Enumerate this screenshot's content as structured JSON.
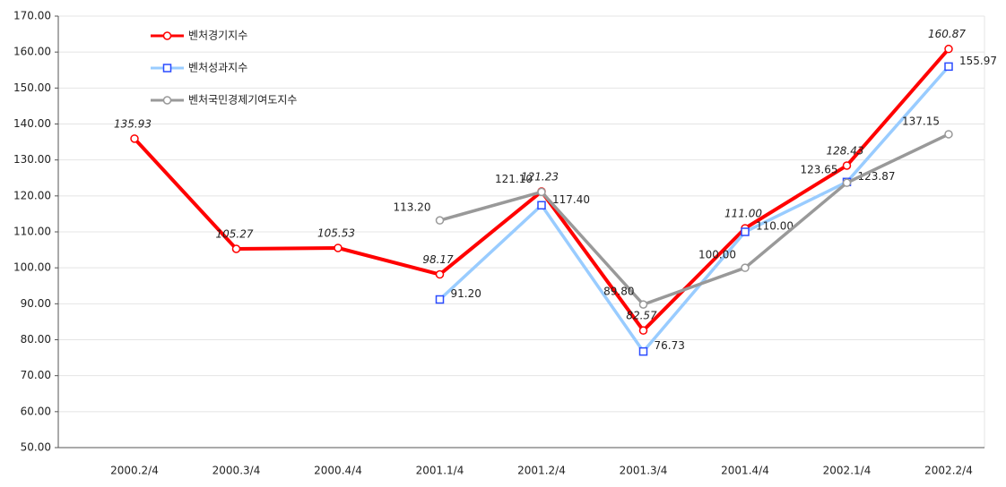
{
  "chart_data": {
    "type": "line",
    "categories": [
      "2000.2/4",
      "2000.3/4",
      "2000.4/4",
      "2001.1/4",
      "2001.2/4",
      "2001.3/4",
      "2001.4/4",
      "2002.1/4",
      "2002.2/4"
    ],
    "series": [
      {
        "name": "벤처경기지수",
        "color": "#ff0000",
        "marker": "circle",
        "values": [
          135.93,
          105.27,
          105.53,
          98.17,
          121.23,
          82.57,
          111.0,
          128.43,
          160.87
        ],
        "value_labels": [
          "135.93",
          "105.27",
          "105.53",
          "98.17",
          "121.23",
          "82.57",
          "111.00",
          "128.43",
          "160.87"
        ]
      },
      {
        "name": "벤처성과지수",
        "color": "#99ccff",
        "marker_color": "#2a4bff",
        "marker": "square",
        "values": [
          null,
          null,
          null,
          91.2,
          117.4,
          76.73,
          110.0,
          123.87,
          155.97
        ],
        "value_labels": [
          null,
          null,
          null,
          "91.20",
          "117.40",
          "76.73",
          "110.00",
          "123.87",
          "155.97"
        ]
      },
      {
        "name": "벤처국민경제기여도지수",
        "color": "#999999",
        "marker": "circle",
        "values": [
          null,
          null,
          null,
          113.2,
          121.1,
          89.8,
          100.0,
          123.65,
          137.15
        ],
        "value_labels": [
          null,
          null,
          null,
          "113.20",
          "121.10",
          "89.80",
          "100.00",
          "123.65",
          "137.15"
        ]
      }
    ],
    "ylim": [
      50,
      170
    ],
    "yticks": [
      {
        "value": 50,
        "label": "50.00"
      },
      {
        "value": 60,
        "label": "60.00"
      },
      {
        "value": 70,
        "label": "70.00"
      },
      {
        "value": 80,
        "label": "80.00"
      },
      {
        "value": 90,
        "label": "90.00"
      },
      {
        "value": 100,
        "label": "100.00"
      },
      {
        "value": 110,
        "label": "110.00"
      },
      {
        "value": 120,
        "label": "120.00"
      },
      {
        "value": 130,
        "label": "130.00"
      },
      {
        "value": 140,
        "label": "140.00"
      },
      {
        "value": 150,
        "label": "150.00"
      },
      {
        "value": 160,
        "label": "160.00"
      },
      {
        "value": 170,
        "label": "170.00"
      }
    ],
    "grid": true,
    "legend": "upper left"
  }
}
